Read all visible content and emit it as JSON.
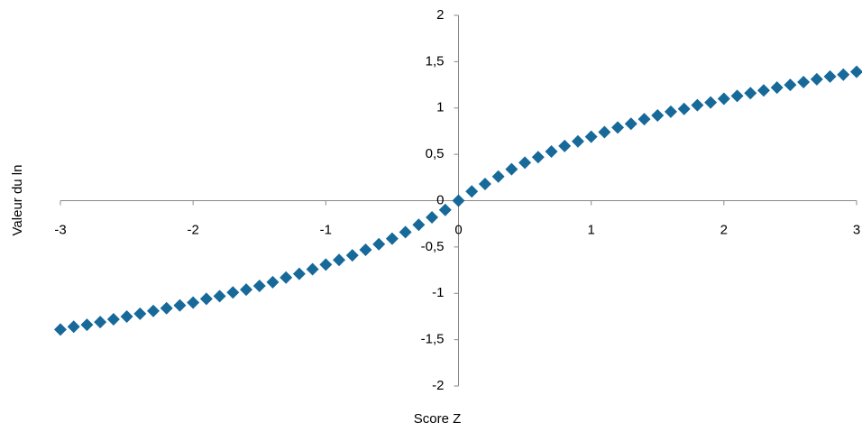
{
  "chart_data": {
    "type": "scatter",
    "x_label": "Score Z",
    "y_label": "Valeur du ln",
    "x": [
      -3,
      -2.9,
      -2.8,
      -2.7,
      -2.6,
      -2.5,
      -2.4,
      -2.3,
      -2.2,
      -2.1,
      -2,
      -1.9,
      -1.8,
      -1.7,
      -1.6,
      -1.5,
      -1.4,
      -1.3,
      -1.2,
      -1.1,
      -1,
      -0.9,
      -0.8,
      -0.7,
      -0.6,
      -0.5,
      -0.4,
      -0.3,
      -0.2,
      -0.1,
      0,
      0.1,
      0.2,
      0.3,
      0.4,
      0.5,
      0.6,
      0.7,
      0.8,
      0.9,
      1,
      1.1,
      1.2,
      1.3,
      1.4,
      1.5,
      1.6,
      1.7,
      1.8,
      1.9,
      2,
      2.1,
      2.2,
      2.3,
      2.4,
      2.5,
      2.6,
      2.7,
      2.8,
      2.9,
      3
    ],
    "values": [
      -1.39,
      -1.36,
      -1.34,
      -1.31,
      -1.28,
      -1.25,
      -1.22,
      -1.19,
      -1.16,
      -1.13,
      -1.1,
      -1.06,
      -1.03,
      -0.99,
      -0.96,
      -0.92,
      -0.88,
      -0.83,
      -0.79,
      -0.74,
      -0.69,
      -0.64,
      -0.59,
      -0.53,
      -0.47,
      -0.41,
      -0.34,
      -0.26,
      -0.18,
      -0.1,
      0,
      0.1,
      0.18,
      0.26,
      0.34,
      0.41,
      0.47,
      0.53,
      0.59,
      0.64,
      0.69,
      0.74,
      0.79,
      0.83,
      0.88,
      0.92,
      0.96,
      0.99,
      1.03,
      1.06,
      1.1,
      1.13,
      1.16,
      1.19,
      1.22,
      1.25,
      1.28,
      1.31,
      1.34,
      1.36,
      1.39
    ],
    "color": "#17699a",
    "xlim": [
      -3,
      3
    ],
    "xticks": [
      -3,
      -2,
      -1,
      0,
      1,
      2,
      3
    ],
    "ylim": [
      -2,
      2
    ],
    "yticks": [
      -2,
      {
        "value": -1.5,
        "label": "-1,5"
      },
      -1,
      {
        "value": -0.5,
        "label": "-0,5"
      },
      0,
      {
        "value": 0.5,
        "label": "0,5"
      },
      1,
      {
        "value": 1.5,
        "label": "1,5"
      },
      2
    ]
  }
}
